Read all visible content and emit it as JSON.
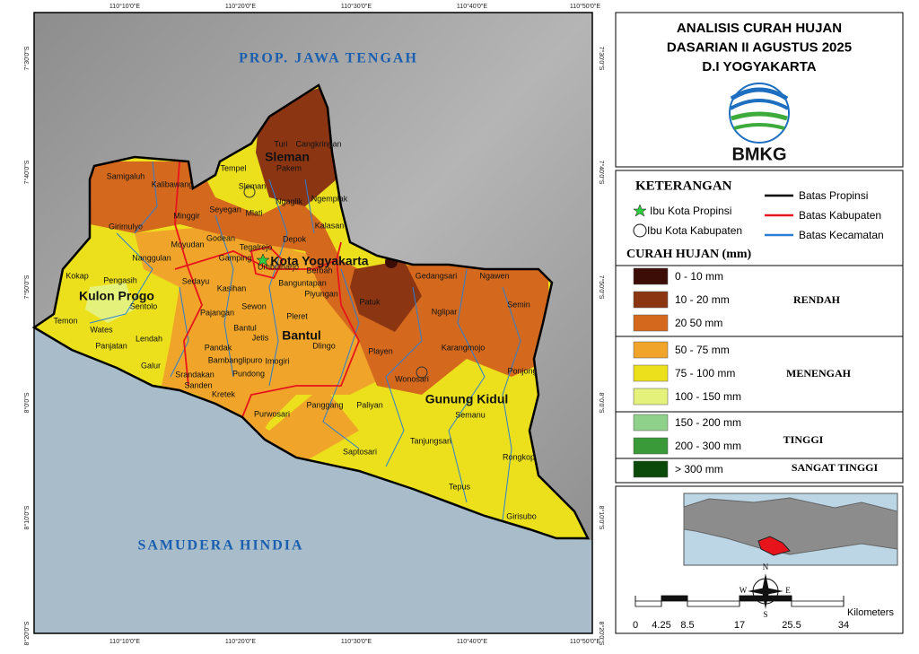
{
  "header": {
    "title_lines": [
      "ANALISIS CURAH HUJAN",
      "DASARIAN II AGUSTUS 2025",
      "D.I YOGYAKARTA"
    ],
    "logo_text": "BMKG"
  },
  "map": {
    "grid_labels": {
      "top": [
        "110°10'0\"E",
        "110°20'0\"E",
        "110°30'0\"E",
        "110°40'0\"E",
        "110°50'0\"E"
      ],
      "bottom": [
        "110°10'0\"E",
        "110°20'0\"E",
        "110°30'0\"E",
        "110°40'0\"E",
        "110°50'0\"E"
      ],
      "left": [
        "7°30'0\"S",
        "7°40'0\"S",
        "7°50'0\"S",
        "8°0'0\"S",
        "8°10'0\"S",
        "8°20'0\"S"
      ],
      "right": [
        "7°30'0\"S",
        "7°40'0\"S",
        "7°50'0\"S",
        "8°0'0\"S",
        "8°10'0\"S",
        "8°20'0\"S"
      ]
    },
    "province_label": "PROP. JAWA TENGAH",
    "sea_label": "SAMUDERA HINDIA",
    "kabupaten": [
      "Sleman",
      "Kota Yogyakarta",
      "Kulon Progo",
      "Bantul",
      "Gunung Kidul"
    ],
    "kecamatan": [
      "Turi",
      "Cangkringan",
      "Tempel",
      "Pakem",
      "Samigaluh",
      "Kalibawang",
      "Sleman",
      "Ngemplak",
      "Ngaglik",
      "Seyegan",
      "Mlati",
      "Minggir",
      "Kalasan",
      "Girimulyo",
      "Godean",
      "Depok",
      "Moyudan",
      "Tegalrejo",
      "Gamping",
      "Nanggulan",
      "Berbah",
      "Umbulharjo",
      "Kokap",
      "Pengasih",
      "Sedayu",
      "Banguntapan",
      "Gedangsari",
      "Ngawen",
      "Kasihan",
      "Piyungan",
      "Patuk",
      "Sentolo",
      "Sewon",
      "Pajangan",
      "Semin",
      "Nglipar",
      "Pleret",
      "Temon",
      "Bantul",
      "Wates",
      "Jetis",
      "Lendah",
      "Dlingo",
      "Panjatan",
      "Pandak",
      "Karangmojo",
      "Playen",
      "Bambanglipuro",
      "Imogiri",
      "Galur",
      "Ponjong",
      "Pundong",
      "Srandakan",
      "Wonosari",
      "Sanden",
      "Kretek",
      "Panggang",
      "Paliyan",
      "Purwosari",
      "Semanu",
      "Tanjungsari",
      "Saptosari",
      "Rongkop",
      "Tepus",
      "Girisubo"
    ]
  },
  "legend": {
    "title": "KETERANGAN",
    "symbols": [
      "Ibu Kota Propinsi",
      "Ibu Kota Kabupaten"
    ],
    "lines": [
      {
        "label": "Batas Propinsi",
        "color": "#000000"
      },
      {
        "label": "Batas Kabupaten",
        "color": "#e8141c"
      },
      {
        "label": "Batas Kecamatan",
        "color": "#2a7fd4"
      }
    ],
    "rain_title": "CURAH HUJAN (mm)",
    "classes": [
      {
        "label": "0 - 10 mm",
        "color": "#3b0d06"
      },
      {
        "label": "10 - 20 mm",
        "color": "#8b3512"
      },
      {
        "label": "20  50 mm",
        "color": "#d4691e"
      },
      {
        "label": "50 - 75 mm",
        "color": "#f0a52a"
      },
      {
        "label": "75 - 100 mm",
        "color": "#ece01c"
      },
      {
        "label": "100 - 150 mm",
        "color": "#e4f27c"
      },
      {
        "label": "150 - 200 mm",
        "color": "#8fd08a"
      },
      {
        "label": "200 - 300 mm",
        "color": "#3a9a3a"
      },
      {
        "label": "> 300 mm",
        "color": "#0b4a0b"
      }
    ],
    "groups": [
      "RENDAH",
      "MENENGAH",
      "TINGGI",
      "SANGAT TINGGI"
    ]
  },
  "scale": {
    "ticks": [
      0,
      4.25,
      8.5,
      17,
      25.5,
      34
    ],
    "unit": "Kilometers"
  },
  "compass": {
    "n": "N",
    "e": "E",
    "s": "S",
    "w": "W"
  }
}
